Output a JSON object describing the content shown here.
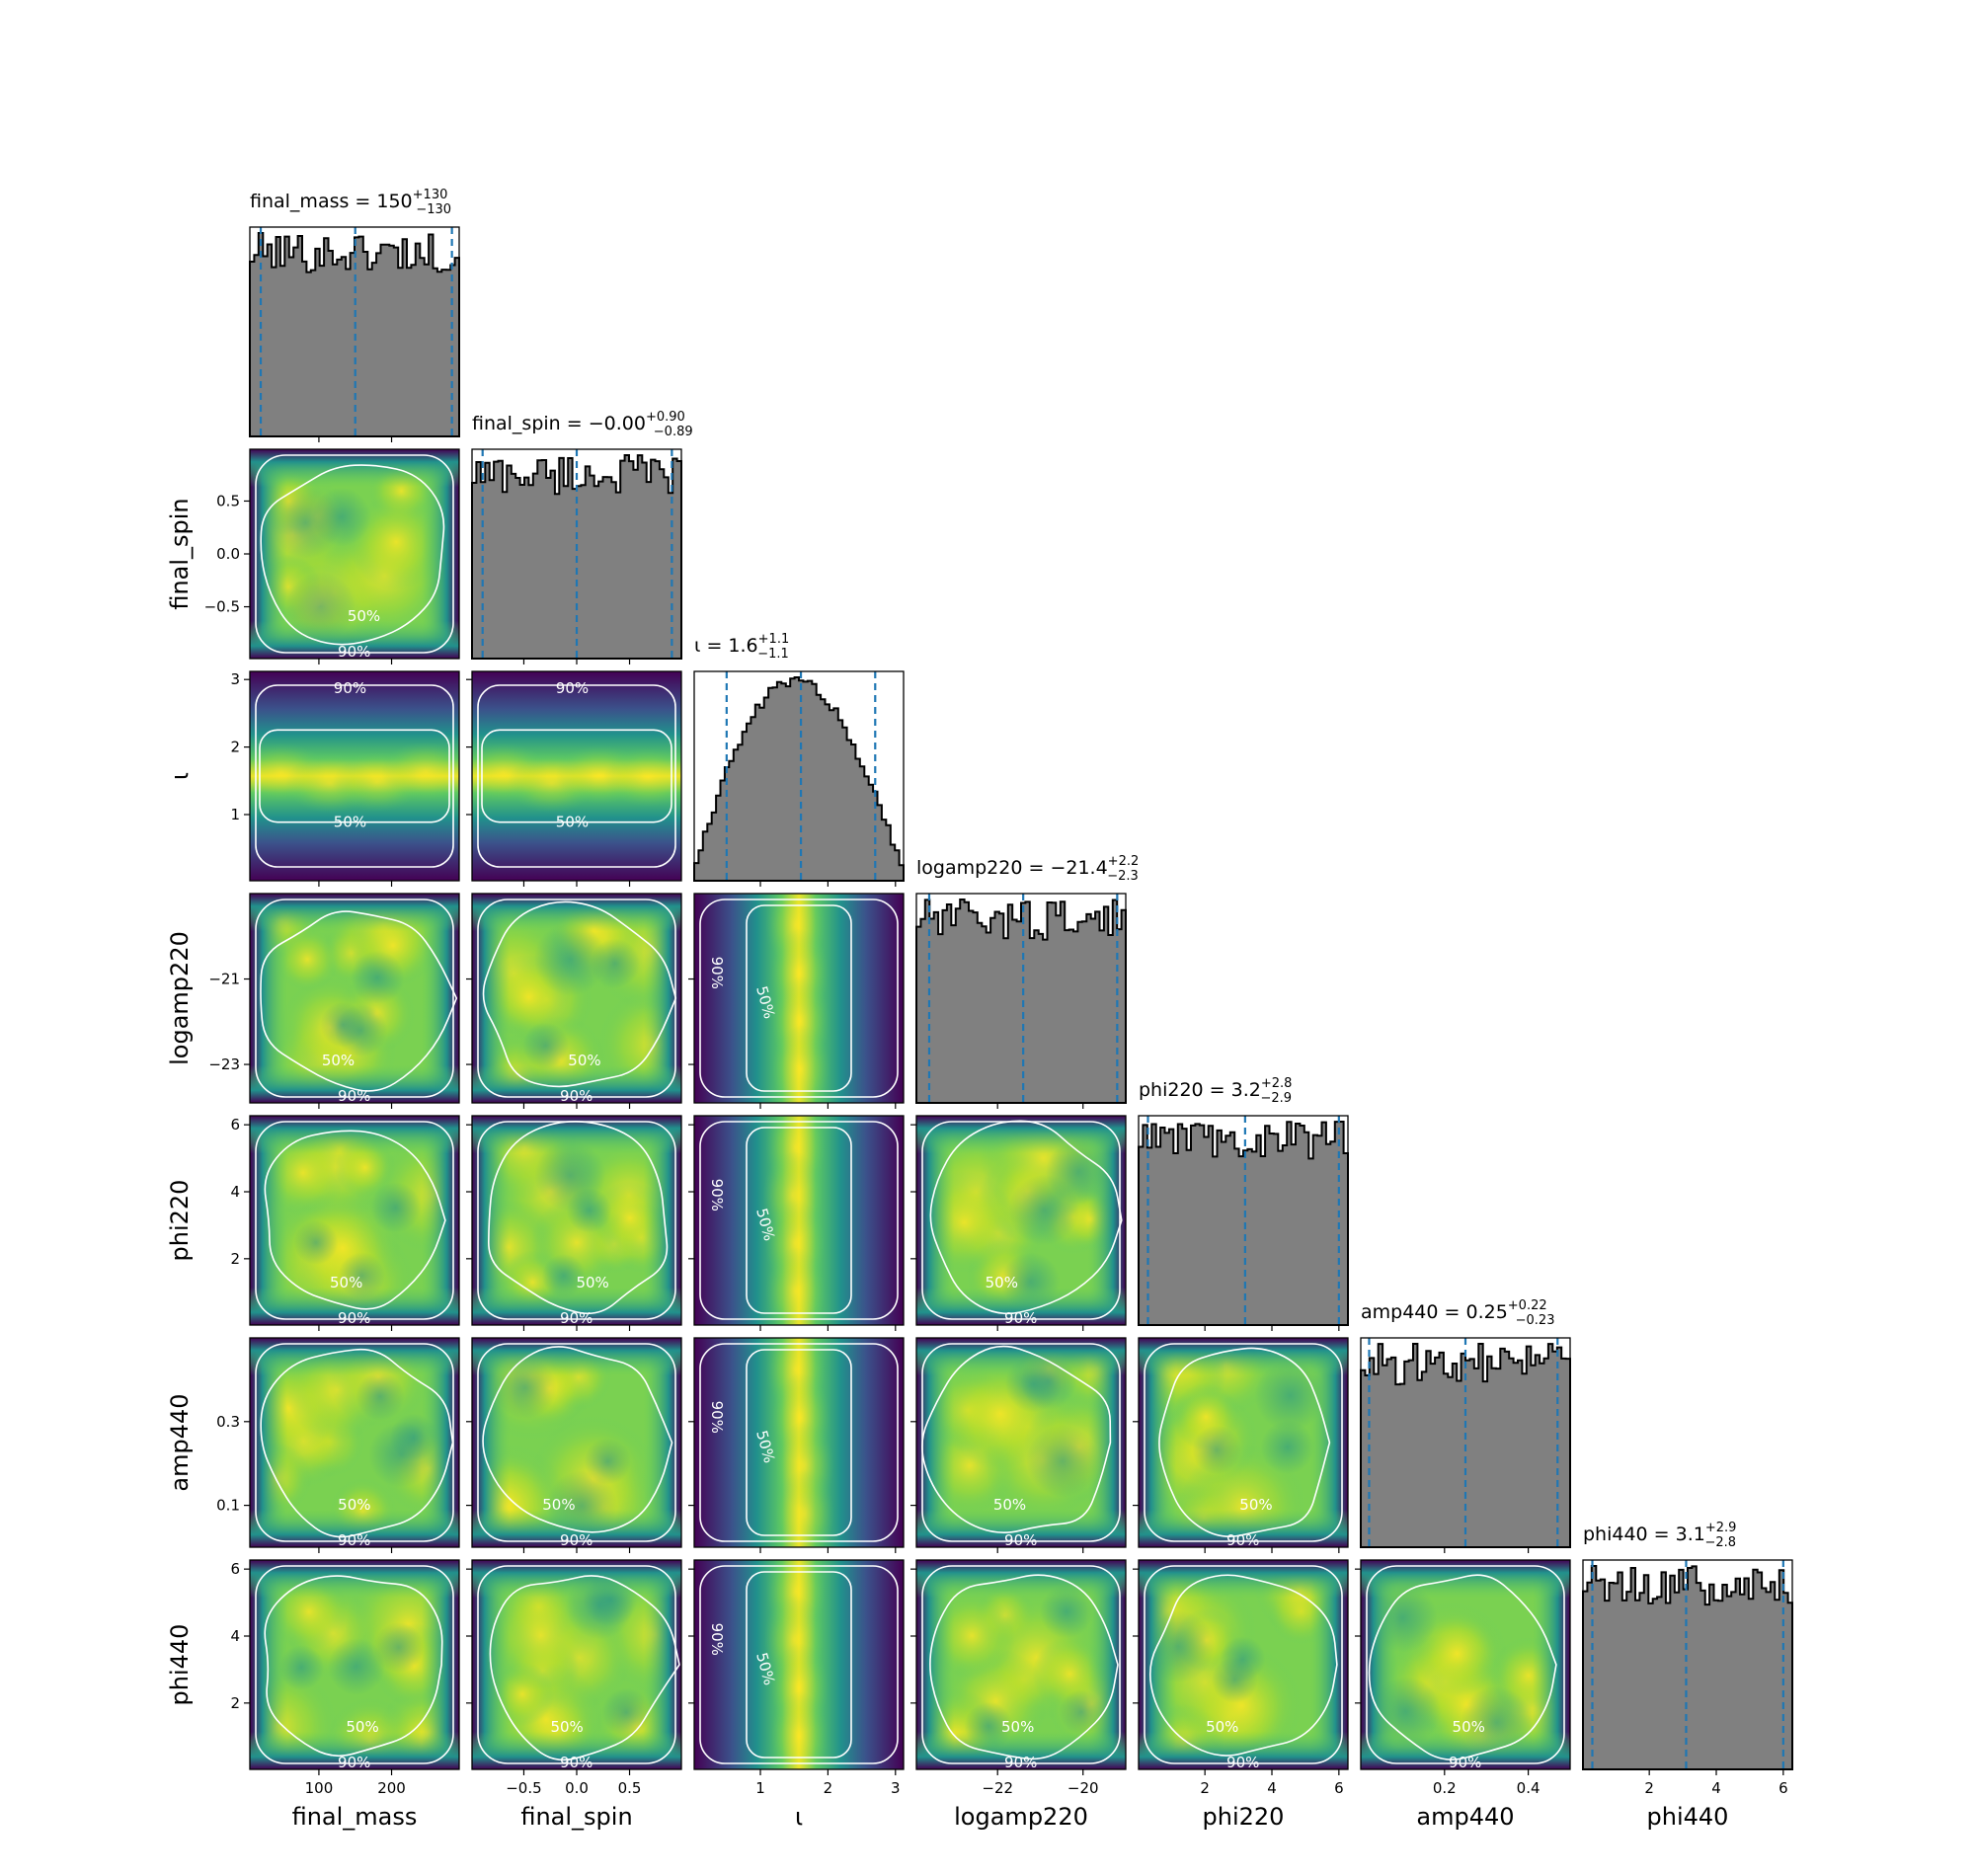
{
  "chart_data": {
    "type": "corner",
    "parameters": [
      {
        "name": "final_mass",
        "label": "final_mass",
        "range": [
          5,
          293
        ],
        "ticks": [
          100,
          200
        ],
        "tick_labels": [
          "100",
          "200"
        ],
        "title": {
          "text": "final_mass = 150",
          "sup": "+130",
          "sub": "−130"
        },
        "quantiles": [
          20,
          150,
          283
        ]
      },
      {
        "name": "final_spin",
        "label": "final_spin",
        "range": [
          -0.99,
          0.99
        ],
        "ticks": [
          -0.5,
          0,
          0.5
        ],
        "tick_labels": [
          "−0.5",
          "0.0",
          "0.5"
        ],
        "title": {
          "text": "final_spin = −0.00",
          "sup": "+0.90",
          "sub": "−0.89"
        },
        "quantiles": [
          -0.89,
          0.0,
          0.9
        ]
      },
      {
        "name": "iota",
        "label": "ι",
        "range": [
          0.02,
          3.12
        ],
        "ticks": [
          1,
          2,
          3
        ],
        "tick_labels": [
          "1",
          "2",
          "3"
        ],
        "title": {
          "text": "ι = 1.6",
          "sup": "+1.1",
          "sub": "−1.1"
        },
        "quantiles": [
          0.5,
          1.6,
          2.7
        ]
      },
      {
        "name": "logamp220",
        "label": "logamp220",
        "range": [
          -23.9,
          -19.0
        ],
        "ticks": [
          -22,
          -20
        ],
        "tick_labels": [
          "−22",
          "−20"
        ],
        "ticks_y": [
          -23,
          -21
        ],
        "tick_labels_y": [
          "−23",
          "−21"
        ],
        "title": {
          "text": "logamp220 = −21.4",
          "sup": "+2.2",
          "sub": "−2.3"
        },
        "quantiles": [
          -23.6,
          -21.4,
          -19.2
        ]
      },
      {
        "name": "phi220",
        "label": "phi220",
        "range": [
          0.02,
          6.27
        ],
        "ticks": [
          2,
          4,
          6
        ],
        "tick_labels": [
          "2",
          "4",
          "6"
        ],
        "title": {
          "text": "phi220 = 3.2",
          "sup": "+2.8",
          "sub": "−2.9"
        },
        "quantiles": [
          0.3,
          3.2,
          6.0
        ]
      },
      {
        "name": "amp440",
        "label": "amp440",
        "range": [
          0.0,
          0.5
        ],
        "ticks": [
          0.2,
          0.4
        ],
        "tick_labels": [
          "0.2",
          "0.4"
        ],
        "ticks_y": [
          0.1,
          0.3
        ],
        "tick_labels_y": [
          "0.1",
          "0.3"
        ],
        "title": {
          "text": "amp440 = 0.25",
          "sup": "+0.22",
          "sub": "−0.23"
        },
        "quantiles": [
          0.02,
          0.25,
          0.47
        ]
      },
      {
        "name": "phi440",
        "label": "phi440",
        "range": [
          0.02,
          6.27
        ],
        "ticks": [
          2,
          4,
          6
        ],
        "tick_labels": [
          "2",
          "4",
          "6"
        ],
        "title": {
          "text": "phi440 = 3.1",
          "sup": "+2.9",
          "sub": "−2.8"
        },
        "quantiles": [
          0.3,
          3.1,
          6.0
        ]
      }
    ],
    "contour_labels": [
      "50%",
      "90%"
    ],
    "colormap": [
      "#440154",
      "#3b528b",
      "#21918c",
      "#5ec962",
      "#fde725"
    ],
    "hist_fill": "#808080",
    "hist_edge": "#000000",
    "quantile_color": "#1f77b4",
    "contour_color": "#ffffff"
  }
}
